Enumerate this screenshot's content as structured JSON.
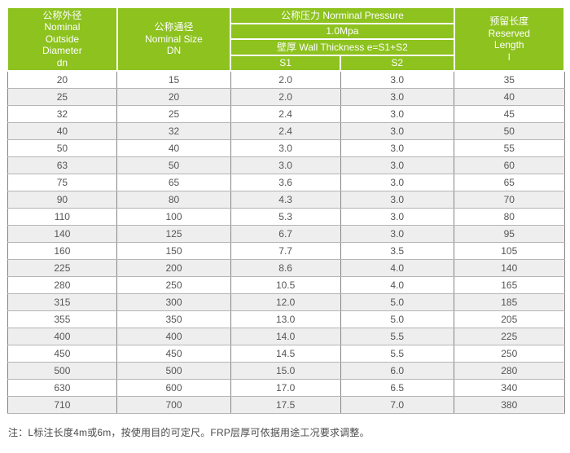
{
  "colors": {
    "header_green": "#8dc21f",
    "row_alt": "#eeeeee",
    "border_vertical": "#858585",
    "border_horizontal": "#b5b5b5",
    "body_text": "#565656",
    "note_text": "#4a4a4a",
    "header_text": "#ffffff"
  },
  "header": {
    "nominal_outside_diameter": "公称外径\nNominal\nOutside\nDiameter\ndn",
    "nominal_size": "公称通径\nNominal Size\nDN",
    "nominal_pressure": "公称压力 Norminal Pressure",
    "pressure_value": "1.0Mpa",
    "wall_thickness": "壁厚 Wall Thickness e=S1+S2",
    "s1": "S1",
    "s2": "S2",
    "reserved_length": "预留长度\nReserved\nLength\nl"
  },
  "rows": [
    [
      "20",
      "15",
      "2.0",
      "3.0",
      "35"
    ],
    [
      "25",
      "20",
      "2.0",
      "3.0",
      "40"
    ],
    [
      "32",
      "25",
      "2.4",
      "3.0",
      "45"
    ],
    [
      "40",
      "32",
      "2.4",
      "3.0",
      "50"
    ],
    [
      "50",
      "40",
      "3.0",
      "3.0",
      "55"
    ],
    [
      "63",
      "50",
      "3.0",
      "3.0",
      "60"
    ],
    [
      "75",
      "65",
      "3.6",
      "3.0",
      "65"
    ],
    [
      "90",
      "80",
      "4.3",
      "3.0",
      "70"
    ],
    [
      "110",
      "100",
      "5.3",
      "3.0",
      "80"
    ],
    [
      "140",
      "125",
      "6.7",
      "3.0",
      "95"
    ],
    [
      "160",
      "150",
      "7.7",
      "3.5",
      "105"
    ],
    [
      "225",
      "200",
      "8.6",
      "4.0",
      "140"
    ],
    [
      "280",
      "250",
      "10.5",
      "4.0",
      "165"
    ],
    [
      "315",
      "300",
      "12.0",
      "5.0",
      "185"
    ],
    [
      "355",
      "350",
      "13.0",
      "5.0",
      "205"
    ],
    [
      "400",
      "400",
      "14.0",
      "5.5",
      "225"
    ],
    [
      "450",
      "450",
      "14.5",
      "5.5",
      "250"
    ],
    [
      "500",
      "500",
      "15.0",
      "6.0",
      "280"
    ],
    [
      "630",
      "600",
      "17.0",
      "6.5",
      "340"
    ],
    [
      "710",
      "700",
      "17.5",
      "7.0",
      "380"
    ]
  ],
  "note": "注：L标注长度4m或6m，按使用目的可定尺。FRP层厚可依据用途工况要求调整。"
}
